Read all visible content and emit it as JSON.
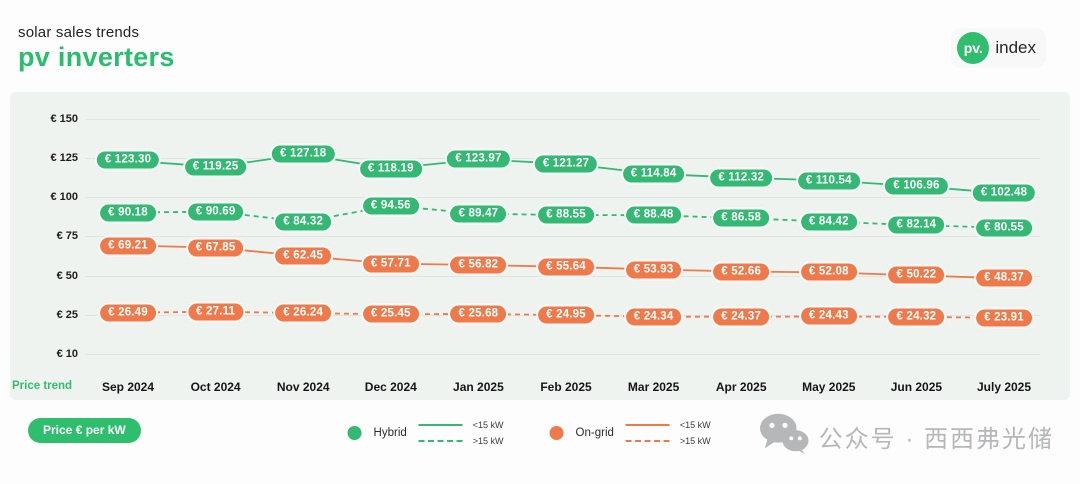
{
  "header": {
    "subtitle": "solar sales trends",
    "title": "pv inverters"
  },
  "logo": {
    "circle": "pv.",
    "suffix": "index"
  },
  "chart": {
    "axis_note": "Price trend"
  },
  "footer": {
    "price_unit": "Price € per kW"
  },
  "watermark": {
    "icon": "wechat-icon",
    "text": "公众号 · 西西弗光储"
  },
  "colors": {
    "green": "#34b873",
    "orange": "#ee7a4c",
    "title_green": "#29bd6e",
    "panel_bg": "#eff3ef",
    "gridline": "#e0e5e0"
  },
  "legend": {
    "groups": [
      {
        "label": "Hybrid",
        "color": "#34b873",
        "entries": [
          {
            "style": "solid",
            "label": "<15 kW"
          },
          {
            "style": "dashed",
            "label": ">15 kW"
          }
        ]
      },
      {
        "label": "On-grid",
        "color": "#ee7a4c",
        "entries": [
          {
            "style": "solid",
            "label": "<15 kW"
          },
          {
            "style": "dashed",
            "label": ">15 kW"
          }
        ]
      }
    ]
  },
  "chart_data": {
    "type": "line",
    "title": "pv inverters",
    "subtitle": "solar sales trends",
    "ylabel": "Price € per kW",
    "currency": "€",
    "grid": "horizontal",
    "legend_position": "bottom",
    "categories": [
      "Sep 2024",
      "Oct 2024",
      "Nov 2024",
      "Dec 2024",
      "Jan 2025",
      "Feb 2025",
      "Mar 2025",
      "Apr 2025",
      "May 2025",
      "Jun 2025",
      "July 2025"
    ],
    "y_ticks": [
      150,
      125,
      100,
      75,
      50,
      25,
      10
    ],
    "ylim": [
      10,
      150
    ],
    "series": [
      {
        "name": "Hybrid <15 kW",
        "group": "Hybrid",
        "size_class": "<15 kW",
        "line_style": "solid",
        "color": "#34b873",
        "values": [
          123.3,
          119.25,
          127.18,
          118.19,
          123.97,
          121.27,
          114.84,
          112.32,
          110.54,
          106.96,
          102.48
        ]
      },
      {
        "name": "Hybrid >15 kW",
        "group": "Hybrid",
        "size_class": ">15 kW",
        "line_style": "dashed",
        "color": "#34b873",
        "values": [
          90.18,
          90.69,
          84.32,
          94.56,
          89.47,
          88.55,
          88.48,
          86.58,
          84.42,
          82.14,
          80.55
        ]
      },
      {
        "name": "On-grid <15 kW",
        "group": "On-grid",
        "size_class": "<15 kW",
        "line_style": "solid",
        "color": "#ee7a4c",
        "values": [
          69.21,
          67.85,
          62.45,
          57.71,
          56.82,
          55.64,
          53.93,
          52.66,
          52.08,
          50.22,
          48.37
        ]
      },
      {
        "name": "On-grid >15 kW",
        "group": "On-grid",
        "size_class": ">15 kW",
        "line_style": "dashed",
        "color": "#ee7a4c",
        "values": [
          26.49,
          27.11,
          26.24,
          25.45,
          25.68,
          24.95,
          24.34,
          24.37,
          24.43,
          24.32,
          23.91
        ]
      }
    ]
  }
}
